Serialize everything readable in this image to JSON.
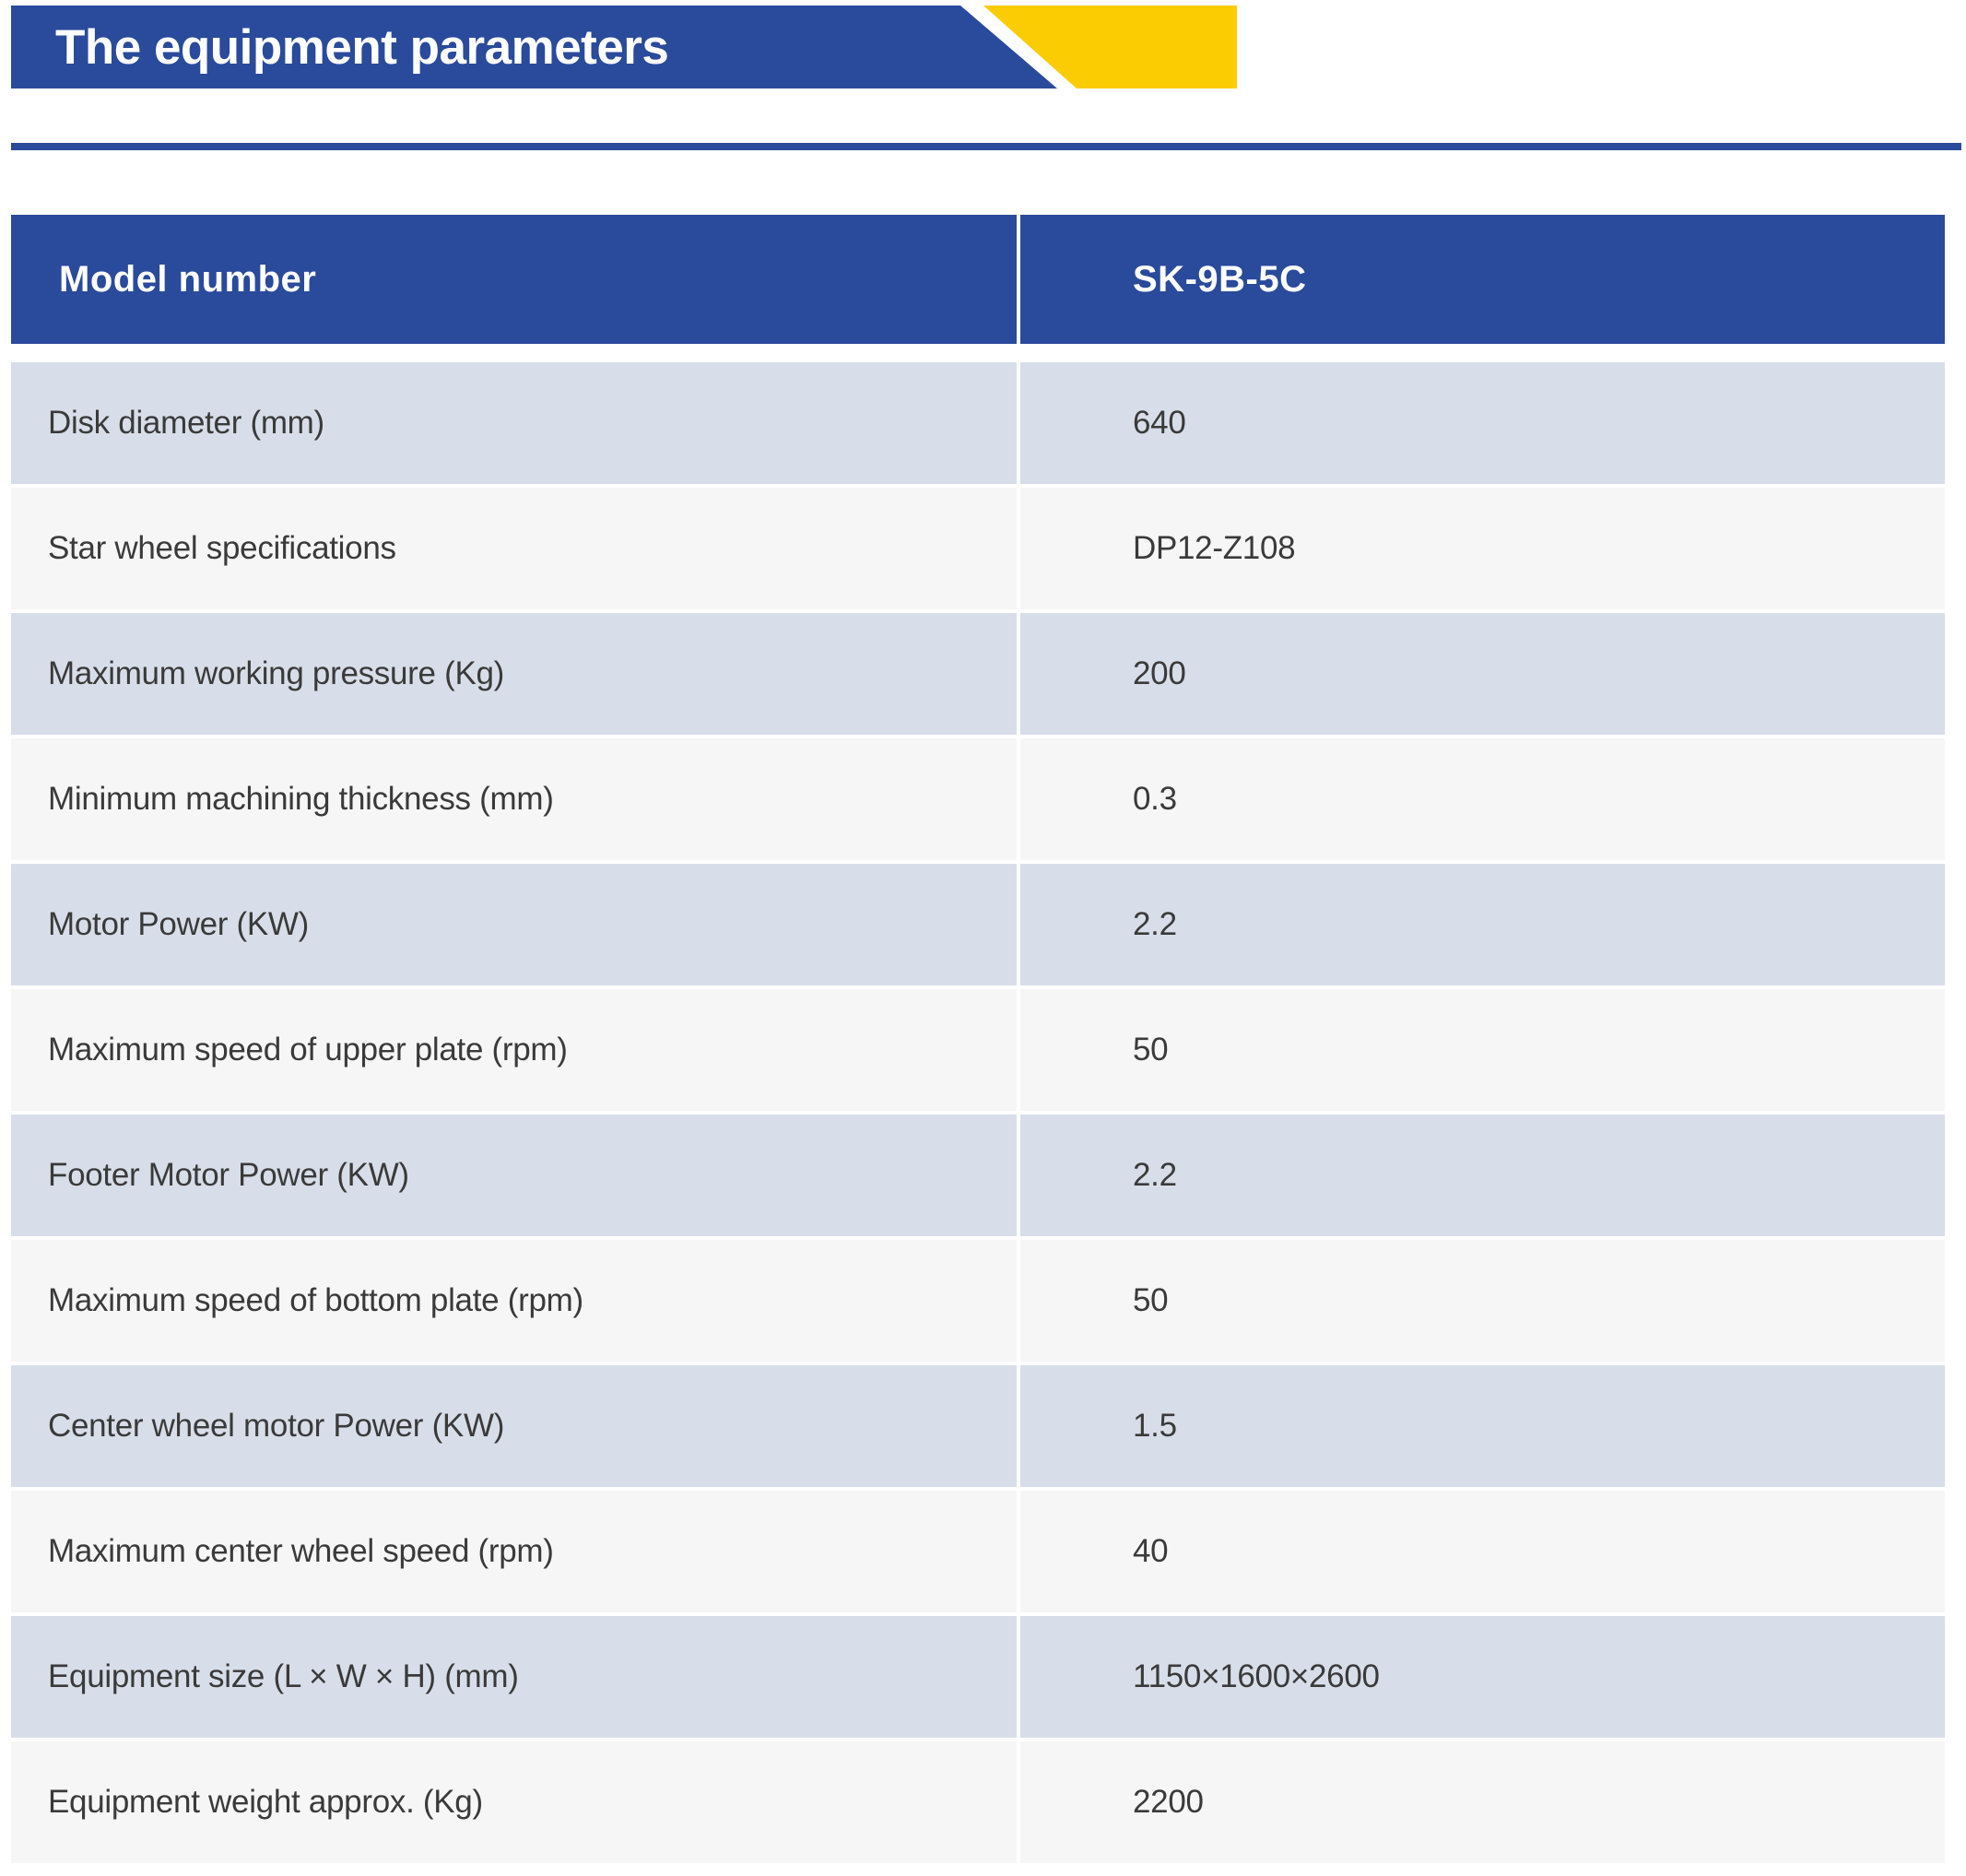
{
  "banner": {
    "title": "The equipment parameters",
    "blue": "#2a4a9b",
    "yellow": "#fccc03"
  },
  "table": {
    "header": {
      "label": "Model number",
      "value": "SK-9B-5C"
    },
    "rows": [
      {
        "label": "Disk diameter (mm)",
        "value": "640"
      },
      {
        "label": "Star wheel specifications",
        "value": "DP12-Z108"
      },
      {
        "label": "Maximum working pressure (Kg)",
        "value": "200"
      },
      {
        "label": "Minimum machining thickness (mm)",
        "value": "0.3"
      },
      {
        "label": "Motor Power (KW)",
        "value": "2.2"
      },
      {
        "label": "Maximum speed of upper plate (rpm)",
        "value": "50"
      },
      {
        "label": "Footer Motor Power (KW)",
        "value": "2.2"
      },
      {
        "label": "Maximum speed of bottom plate (rpm)",
        "value": "50"
      },
      {
        "label": "Center wheel motor Power (KW)",
        "value": "1.5"
      },
      {
        "label": "Maximum center wheel speed (rpm)",
        "value": "40"
      },
      {
        "label": "Equipment size (L × W × H) (mm)",
        "value": "1150×1600×2600"
      },
      {
        "label": "Equipment weight approx. (Kg)",
        "value": "2200"
      }
    ],
    "colors": {
      "header_bg": "#2a4a9b",
      "header_text": "#ffffff",
      "row_alt_bg": "#d8dee9",
      "row_bg": "#f6f6f7",
      "text": "#3a3a3a"
    }
  }
}
